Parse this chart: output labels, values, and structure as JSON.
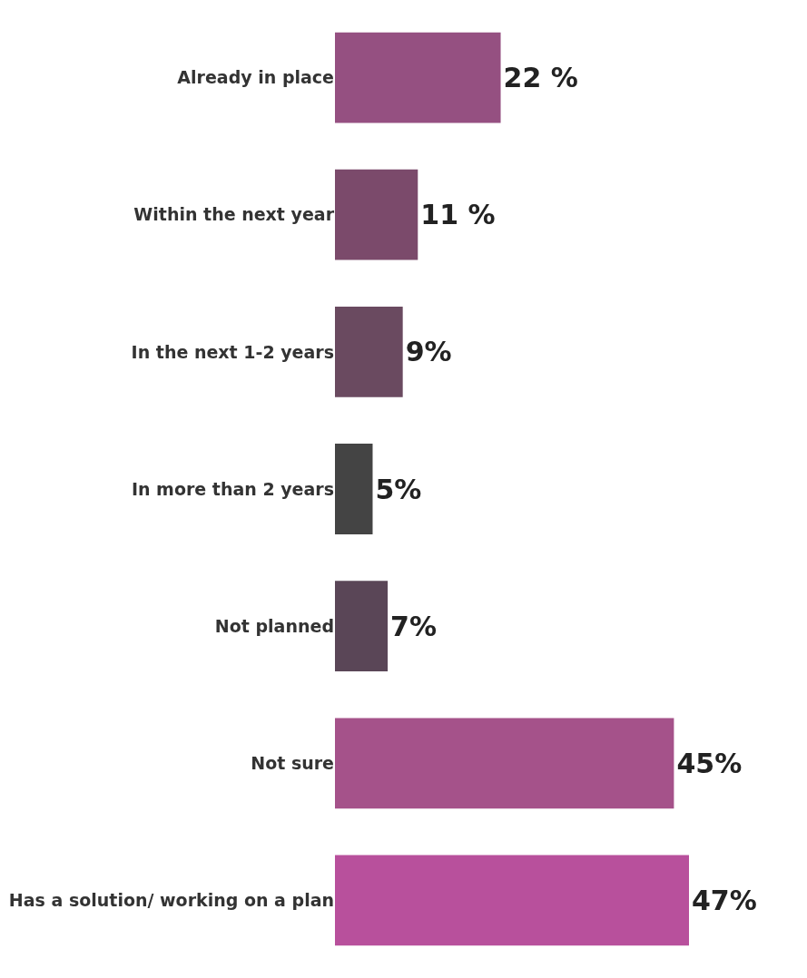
{
  "chart_data": {
    "type": "bar",
    "orientation": "horizontal",
    "categories": [
      "Already in place",
      "Within the next year",
      "In the next 1-2 years",
      "In more than 2 years",
      "Not planned",
      "Not sure",
      "Has a solution/ working on a plan"
    ],
    "values": [
      22,
      11,
      9,
      5,
      7,
      45,
      47
    ],
    "colors": [
      "#955081",
      "#7b4a6b",
      "#6a4a60",
      "#444444",
      "#5a4657",
      "#a5528a",
      "#b8509c"
    ],
    "value_labels": [
      "22 %",
      "11 %",
      "9%",
      "5%",
      "7%",
      "45%",
      "47%"
    ],
    "xlim": [
      0,
      47
    ],
    "tick_labels": "y"
  }
}
